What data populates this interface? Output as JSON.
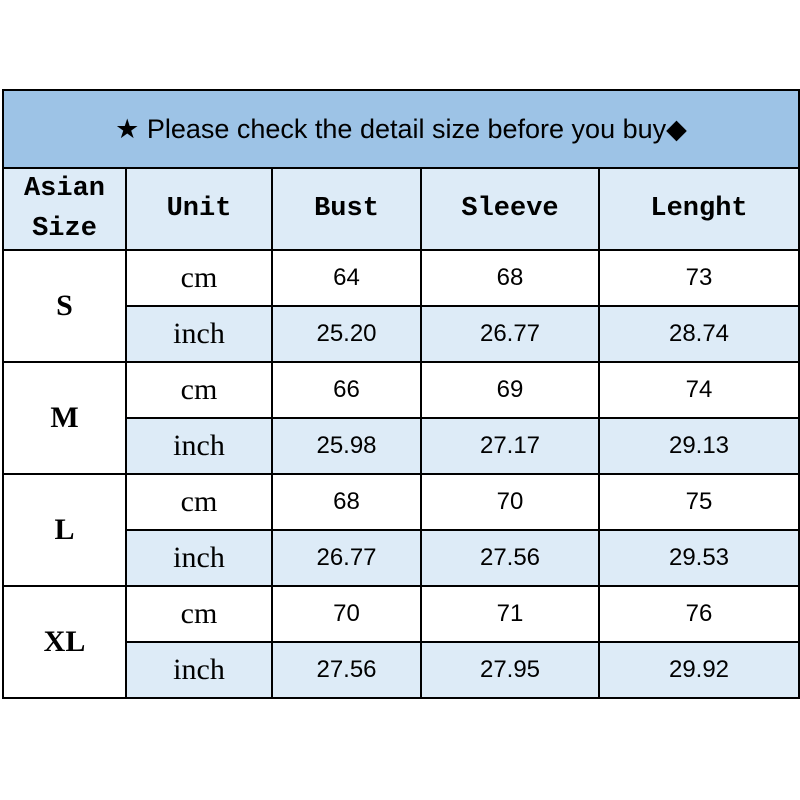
{
  "title": {
    "star_icon": "★",
    "text": "Please check the detail size before you buy",
    "diamond_icon": "◆"
  },
  "colors": {
    "title_bg": "#9dc3e6",
    "header_bg": "#ddebf7",
    "alt_row_bg": "#ddebf7"
  },
  "headers": [
    "Asian Size",
    "Unit",
    "Bust",
    "Sleeve",
    "Lenght"
  ],
  "rows": [
    {
      "size": "S",
      "cm": {
        "unit": "cm",
        "bust": "64",
        "sleeve": "68",
        "length": "73"
      },
      "inch": {
        "unit": "inch",
        "bust": "25.20",
        "sleeve": "26.77",
        "length": "28.74"
      }
    },
    {
      "size": "M",
      "cm": {
        "unit": "cm",
        "bust": "66",
        "sleeve": "69",
        "length": "74"
      },
      "inch": {
        "unit": "inch",
        "bust": "25.98",
        "sleeve": "27.17",
        "length": "29.13"
      }
    },
    {
      "size": "L",
      "cm": {
        "unit": "cm",
        "bust": "68",
        "sleeve": "70",
        "length": "75"
      },
      "inch": {
        "unit": "inch",
        "bust": "26.77",
        "sleeve": "27.56",
        "length": "29.53"
      }
    },
    {
      "size": "XL",
      "cm": {
        "unit": "cm",
        "bust": "70",
        "sleeve": "71",
        "length": "76"
      },
      "inch": {
        "unit": "inch",
        "bust": "27.56",
        "sleeve": "27.95",
        "length": "29.92"
      }
    }
  ]
}
